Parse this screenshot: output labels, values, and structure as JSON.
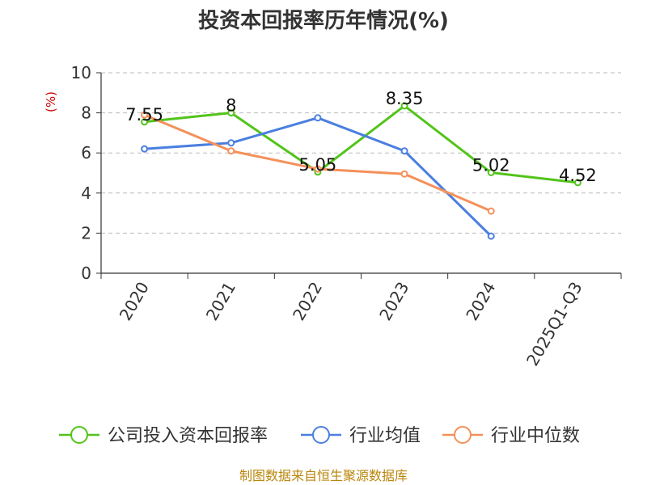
{
  "chart_data": {
    "type": "line",
    "title": "投资本回报率历年情况(%)",
    "xlabel": "",
    "ylabel": "(%)",
    "ylim": [
      0,
      10
    ],
    "yticks": [
      0,
      2,
      4,
      6,
      8,
      10
    ],
    "grid": true,
    "categories": [
      "2020",
      "2021",
      "2022",
      "2023",
      "2024",
      "2025Q1-Q3"
    ],
    "series": [
      {
        "name": "公司投入资本回报率",
        "color": "#52c41a",
        "values": [
          7.55,
          8,
          5.05,
          8.35,
          5.02,
          4.52
        ],
        "labels": [
          "7.55",
          "8",
          "5.05",
          "8.35",
          "5.02",
          "4.52"
        ]
      },
      {
        "name": "行业均值",
        "color": "#4a7fe0",
        "values": [
          6.2,
          6.5,
          7.75,
          6.1,
          1.85,
          null
        ]
      },
      {
        "name": "行业中位数",
        "color": "#f4905a",
        "values": [
          7.9,
          6.1,
          5.2,
          4.95,
          3.1,
          null
        ]
      }
    ],
    "legend_position": "bottom",
    "source": "制图数据来自恒生聚源数据库"
  }
}
